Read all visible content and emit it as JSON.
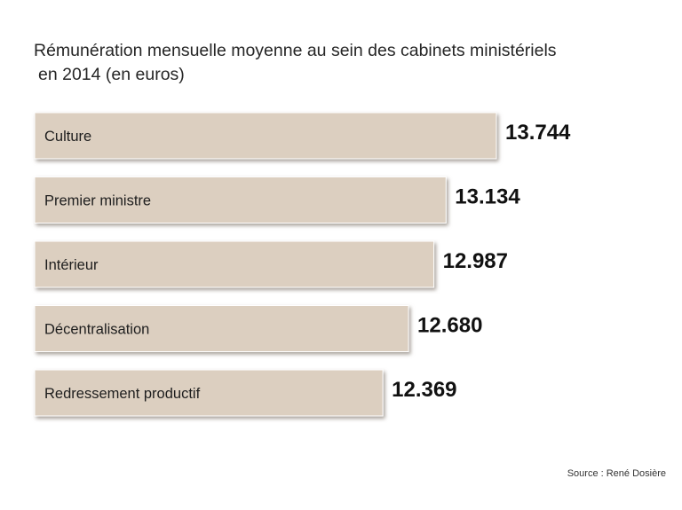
{
  "title_line1": "Rémunération mensuelle moyenne au sein des cabinets ministériels",
  "title_line2": "en 2014 (en euros)",
  "source": "Source : René Dosière",
  "colors": {
    "bar_fill": "#dccfc0",
    "bar_border": "#ffffff",
    "bar_shadow": "#8a8178",
    "value_text": "#111111",
    "label_text": "#1e1e1e"
  },
  "chart_data": {
    "type": "bar",
    "orientation": "horizontal",
    "title": "Rémunération mensuelle moyenne au sein des cabinets ministériels en 2014 (en euros)",
    "categories": [
      "Culture",
      "Premier ministre",
      "Intérieur",
      "Décentralisation",
      "Redressement productif"
    ],
    "values": [
      13744,
      13134,
      12987,
      12680,
      12369
    ],
    "value_labels": [
      "13.744",
      "13.134",
      "12.987",
      "12.680",
      "12.369"
    ],
    "xlabel": "",
    "ylabel": "",
    "grid": false,
    "legend": "none"
  }
}
